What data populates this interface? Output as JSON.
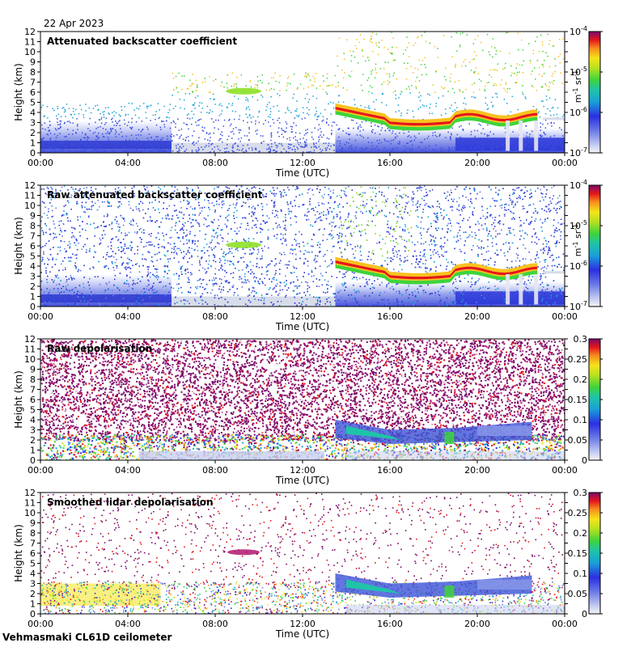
{
  "date": "22 Apr 2023",
  "footer": "Vehmasmaki CL61D ceilometer",
  "chart_data": [
    {
      "type": "heatmap",
      "title": "Attenuated backscatter coefficient",
      "xlabel": "Time (UTC)",
      "ylabel": "Height (km)",
      "x_ticks": [
        "00:00",
        "04:00",
        "08:00",
        "12:00",
        "16:00",
        "20:00",
        "00:00"
      ],
      "y_ticks": [
        "0",
        "1",
        "2",
        "3",
        "4",
        "5",
        "6",
        "7",
        "8",
        "9",
        "10",
        "11",
        "12"
      ],
      "ylim": [
        0,
        12
      ],
      "colorbar": {
        "scale": "log",
        "ticks": [
          "10",
          "10",
          "10",
          "10"
        ],
        "exponents": [
          "-7",
          "-6",
          "-5",
          "-4"
        ],
        "unit_base": "m",
        "unit_exp1": "-1",
        "unit_mid": " sr",
        "unit_exp2": "-1"
      }
    },
    {
      "type": "heatmap",
      "title": "Raw attenuated backscatter coefficient",
      "xlabel": "Time (UTC)",
      "ylabel": "Height (km)",
      "x_ticks": [
        "00:00",
        "04:00",
        "08:00",
        "12:00",
        "16:00",
        "20:00",
        "00:00"
      ],
      "y_ticks": [
        "0",
        "1",
        "2",
        "3",
        "4",
        "5",
        "6",
        "7",
        "8",
        "9",
        "10",
        "11",
        "12"
      ],
      "ylim": [
        0,
        12
      ],
      "colorbar": {
        "scale": "log",
        "ticks": [
          "10",
          "10",
          "10",
          "10"
        ],
        "exponents": [
          "-7",
          "-6",
          "-5",
          "-4"
        ],
        "unit_base": "m",
        "unit_exp1": "-1",
        "unit_mid": " sr",
        "unit_exp2": "-1"
      }
    },
    {
      "type": "heatmap",
      "title": "Raw depolarisation",
      "xlabel": "Time (UTC)",
      "ylabel": "Height (km)",
      "x_ticks": [
        "00:00",
        "04:00",
        "08:00",
        "12:00",
        "16:00",
        "20:00",
        "00:00"
      ],
      "y_ticks": [
        "0",
        "1",
        "2",
        "3",
        "4",
        "5",
        "6",
        "7",
        "8",
        "9",
        "10",
        "11",
        "12"
      ],
      "ylim": [
        0,
        12
      ],
      "colorbar": {
        "scale": "linear",
        "ticks": [
          "0",
          "0.05",
          "0.1",
          "0.15",
          "0.2",
          "0.25",
          "0.3"
        ]
      }
    },
    {
      "type": "heatmap",
      "title": "Smoothed lidar depolarisation",
      "xlabel": "Time (UTC)",
      "ylabel": "Height (km)",
      "x_ticks": [
        "00:00",
        "04:00",
        "08:00",
        "12:00",
        "16:00",
        "20:00",
        "00:00"
      ],
      "y_ticks": [
        "0",
        "1",
        "2",
        "3",
        "4",
        "5",
        "6",
        "7",
        "8",
        "9",
        "10",
        "11",
        "12"
      ],
      "ylim": [
        0,
        12
      ],
      "colorbar": {
        "scale": "linear",
        "ticks": [
          "0",
          "0.05",
          "0.1",
          "0.15",
          "0.2",
          "0.25",
          "0.3"
        ]
      }
    }
  ]
}
